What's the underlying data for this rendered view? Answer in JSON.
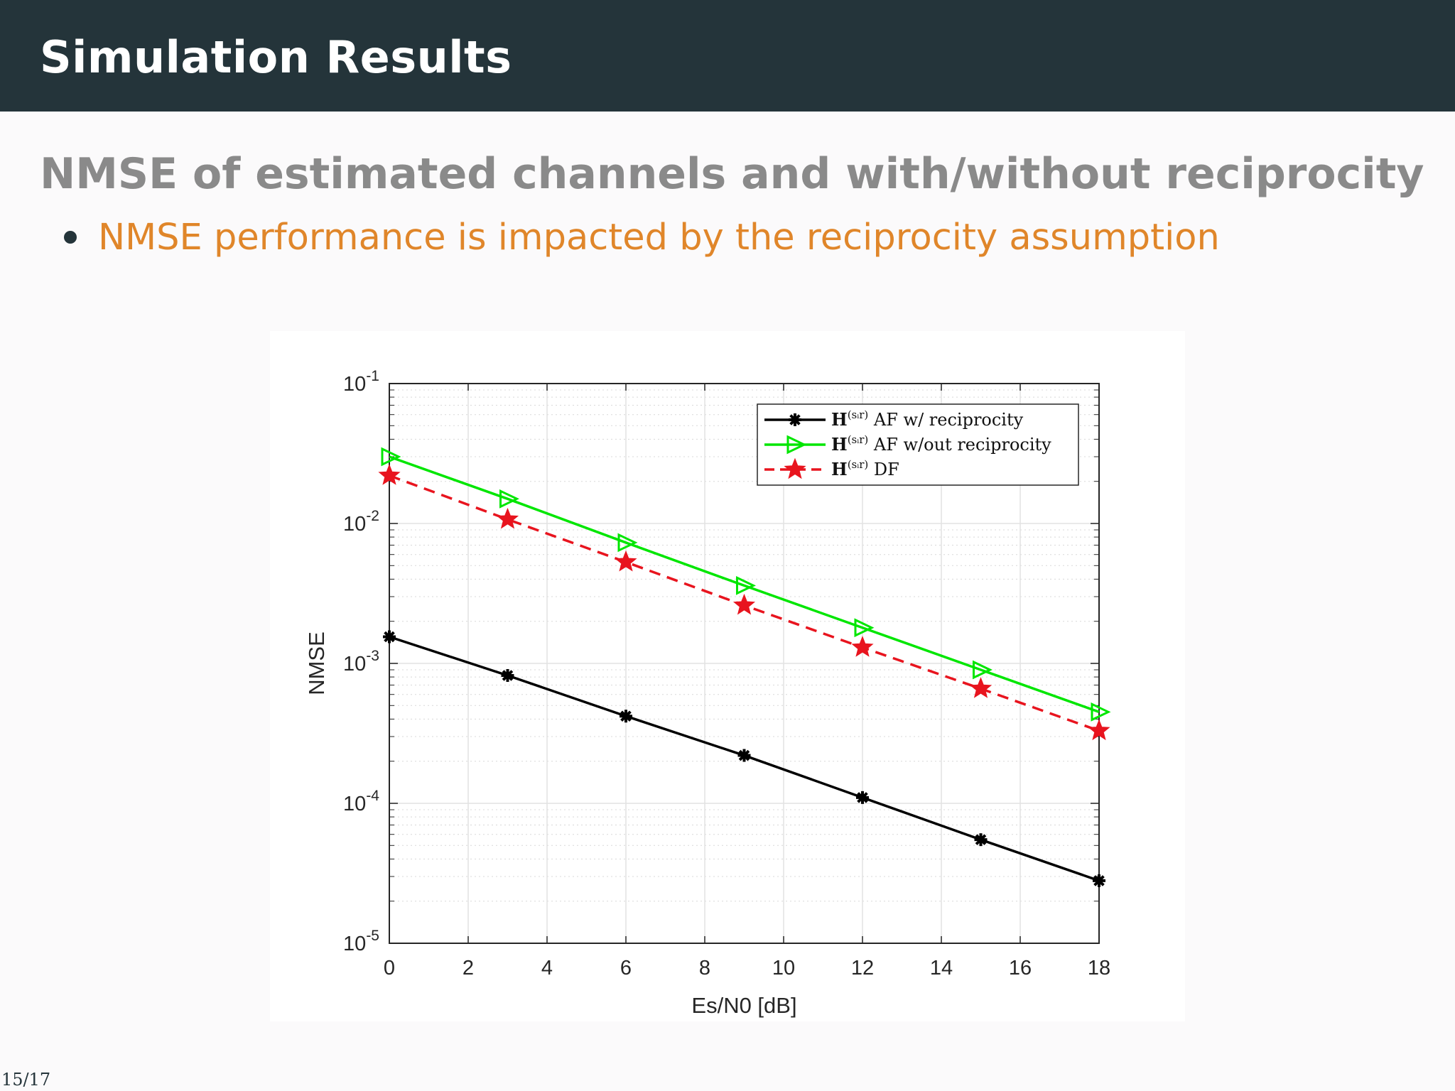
{
  "slide": {
    "title": "Simulation Results",
    "subtitle": "NMSE of estimated channels and with/without reciprocity",
    "bullet": "NMSE performance is impacted by the reciprocity assumption",
    "page": "15/17"
  },
  "colors": {
    "header_bg": "#24343a",
    "subtitle": "#8a8a8a",
    "bullet_text": "#e0862a",
    "series_af_recip": "#000000",
    "series_af_norecip": "#00e600",
    "series_df": "#e8141e"
  },
  "chart_data": {
    "type": "line",
    "title": "",
    "xlabel": "Es/N0 [dB]",
    "ylabel": "NMSE",
    "xlim": [
      0,
      18
    ],
    "ylim": [
      1e-05,
      0.1
    ],
    "yscale": "log",
    "grid": true,
    "minor_grid": true,
    "legend_position": "top-right",
    "x_ticks": [
      "0",
      "2",
      "4",
      "6",
      "8",
      "10",
      "12",
      "14",
      "16",
      "18"
    ],
    "y_ticks": [
      {
        "base": "10",
        "exp": "-5",
        "value": 1e-05
      },
      {
        "base": "10",
        "exp": "-4",
        "value": 0.0001
      },
      {
        "base": "10",
        "exp": "-3",
        "value": 0.001
      },
      {
        "base": "10",
        "exp": "-2",
        "value": 0.01
      },
      {
        "base": "10",
        "exp": "-1",
        "value": 0.1
      }
    ],
    "x": [
      0,
      3,
      6,
      9,
      12,
      15,
      18
    ],
    "series": [
      {
        "name": "H(s_i r) AF w/ reciprocity",
        "legend_bold": "H",
        "legend_sup": "(sᵢr)",
        "legend_rest": " AF w/ reciprocity",
        "color": "#000000",
        "marker": "asterisk",
        "dash": "solid",
        "values": [
          0.00155,
          0.00082,
          0.00042,
          0.00022,
          0.00011,
          5.5e-05,
          2.8e-05
        ]
      },
      {
        "name": "H(s_i r) AF w/out reciprocity",
        "legend_bold": "H",
        "legend_sup": "(sᵢr)",
        "legend_rest": " AF w/out reciprocity",
        "color": "#00e600",
        "marker": "triangle-right",
        "dash": "solid",
        "values": [
          0.03,
          0.015,
          0.0073,
          0.0036,
          0.0018,
          0.0009,
          0.00045
        ]
      },
      {
        "name": "H(s_i r) DF",
        "legend_bold": "H",
        "legend_sup": "(sᵢr)",
        "legend_rest": " DF",
        "color": "#e8141e",
        "marker": "star",
        "dash": "dashed",
        "values": [
          0.022,
          0.0107,
          0.0053,
          0.0026,
          0.0013,
          0.00066,
          0.00033
        ]
      }
    ]
  }
}
